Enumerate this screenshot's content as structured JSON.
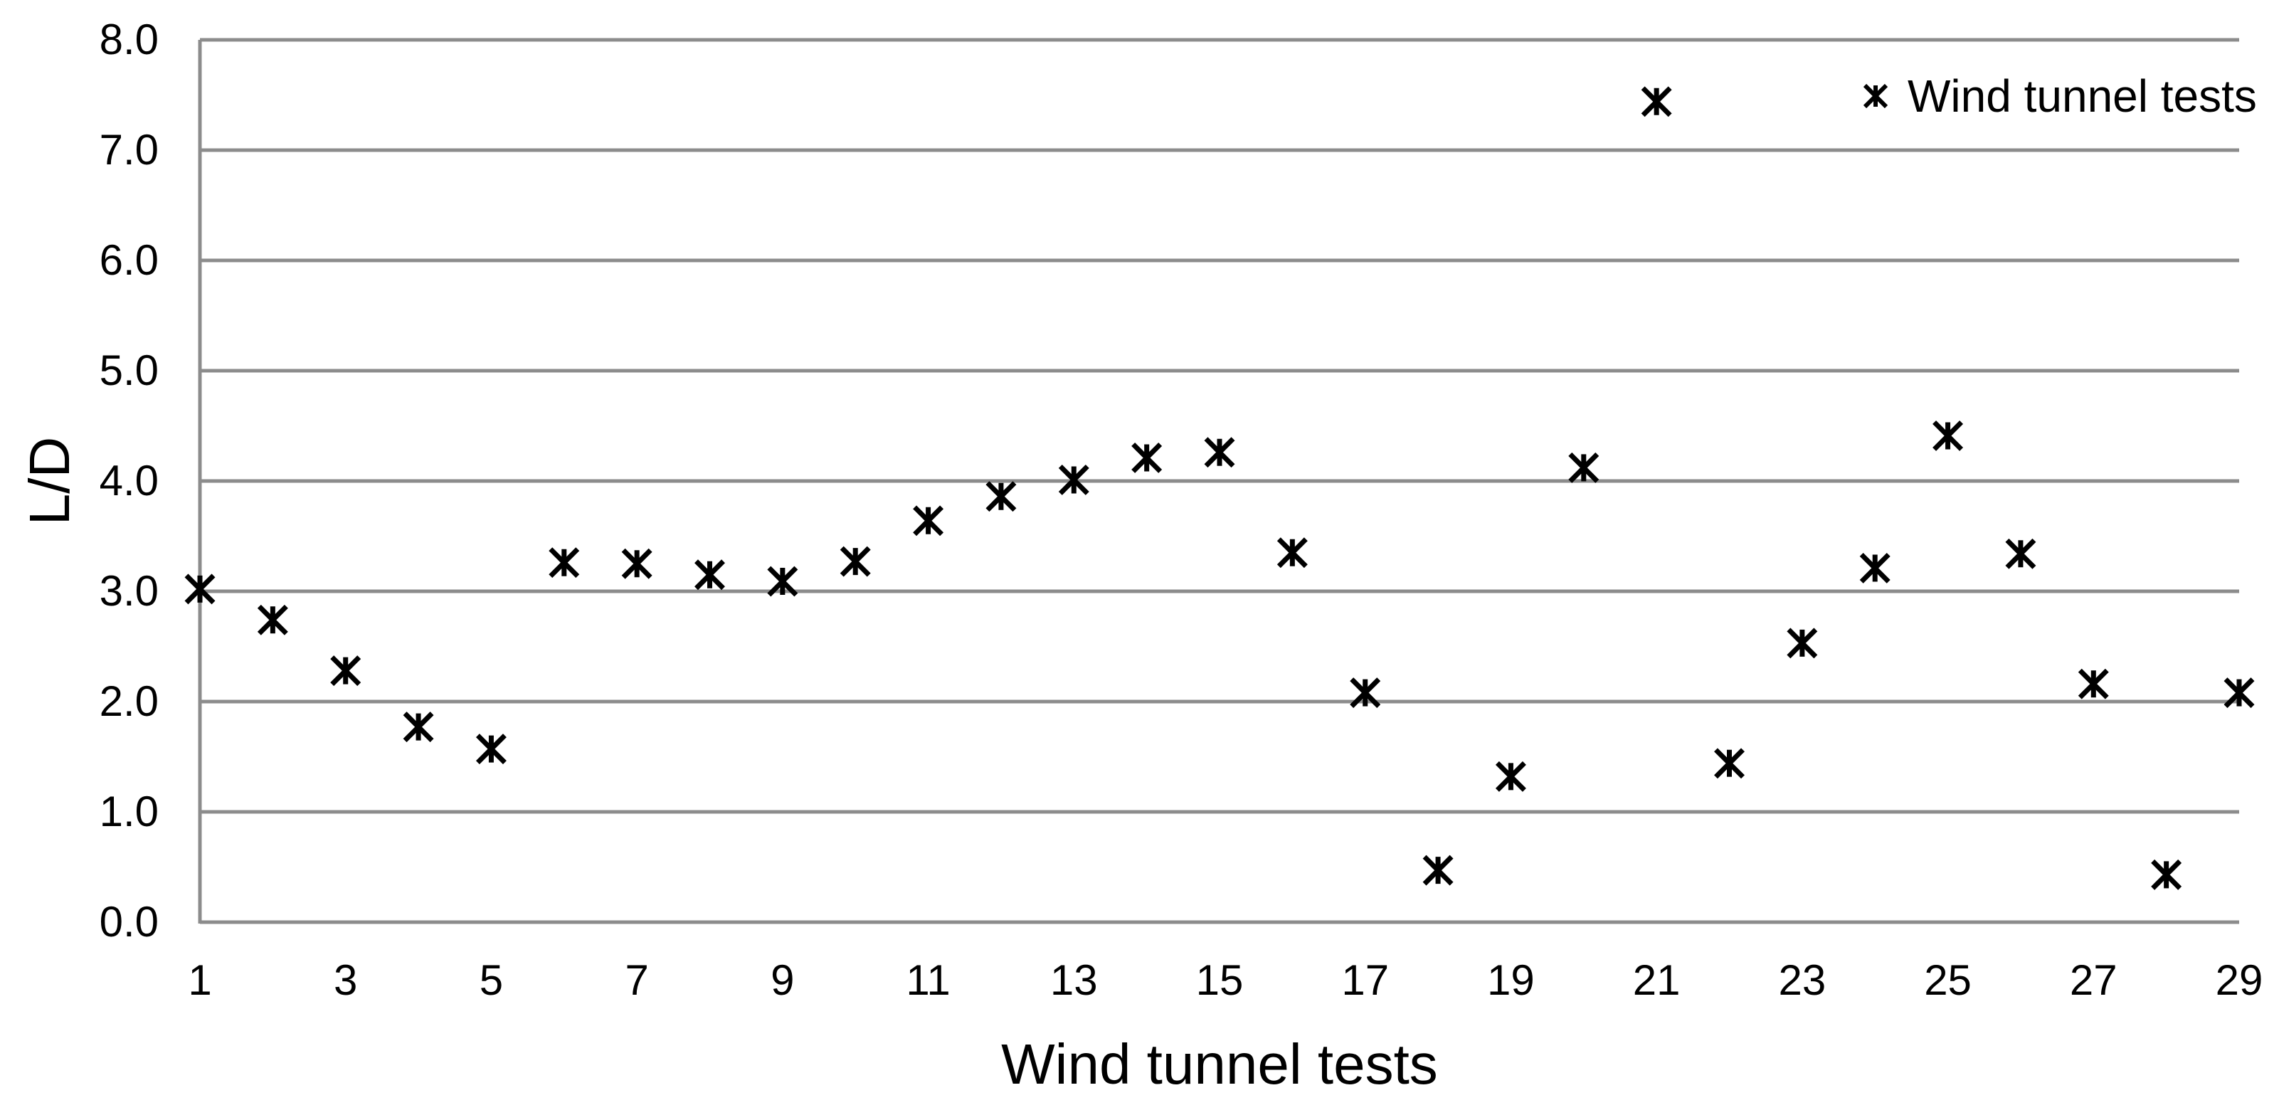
{
  "chart_data": {
    "type": "scatter",
    "title": "",
    "xlabel": "Wind tunnel tests",
    "ylabel": "L/D",
    "legend": {
      "label": "Wind tunnel tests",
      "position": "top-right-inside",
      "marker": "asterisk"
    },
    "x": [
      1,
      2,
      3,
      4,
      5,
      6,
      7,
      8,
      9,
      10,
      11,
      12,
      13,
      14,
      15,
      16,
      17,
      18,
      19,
      20,
      21,
      22,
      23,
      24,
      25,
      26,
      27,
      28,
      29
    ],
    "series": [
      {
        "name": "Wind tunnel tests",
        "marker": "asterisk-6-spoke",
        "color": "#000000",
        "values": [
          3.02,
          2.74,
          2.28,
          1.77,
          1.57,
          3.26,
          3.25,
          3.15,
          3.09,
          3.27,
          3.64,
          3.86,
          4.01,
          4.21,
          4.26,
          3.35,
          2.08,
          0.47,
          1.32,
          4.12,
          7.44,
          1.44,
          2.53,
          3.21,
          4.41,
          3.34,
          2.16,
          0.43,
          2.08
        ]
      }
    ],
    "ylim": [
      0.0,
      8.0
    ],
    "yticks": [
      0,
      1,
      2,
      3,
      4,
      5,
      6,
      7,
      8
    ],
    "ytick_labels": [
      "0.0",
      "1.0",
      "2.0",
      "3.0",
      "4.0",
      "5.0",
      "6.0",
      "7.0",
      "8.0"
    ],
    "xtick_labels": [
      "1",
      "3",
      "5",
      "7",
      "9",
      "11",
      "13",
      "15",
      "17",
      "19",
      "21",
      "23",
      "25",
      "27",
      "29"
    ],
    "grid": "horizontal-major",
    "gridlines_on": true,
    "colors": {
      "gridline": "#8C8C8C",
      "axis": "#8C8C8C",
      "text": "#000000",
      "marker": "#000000",
      "background": "#FFFFFF"
    }
  }
}
